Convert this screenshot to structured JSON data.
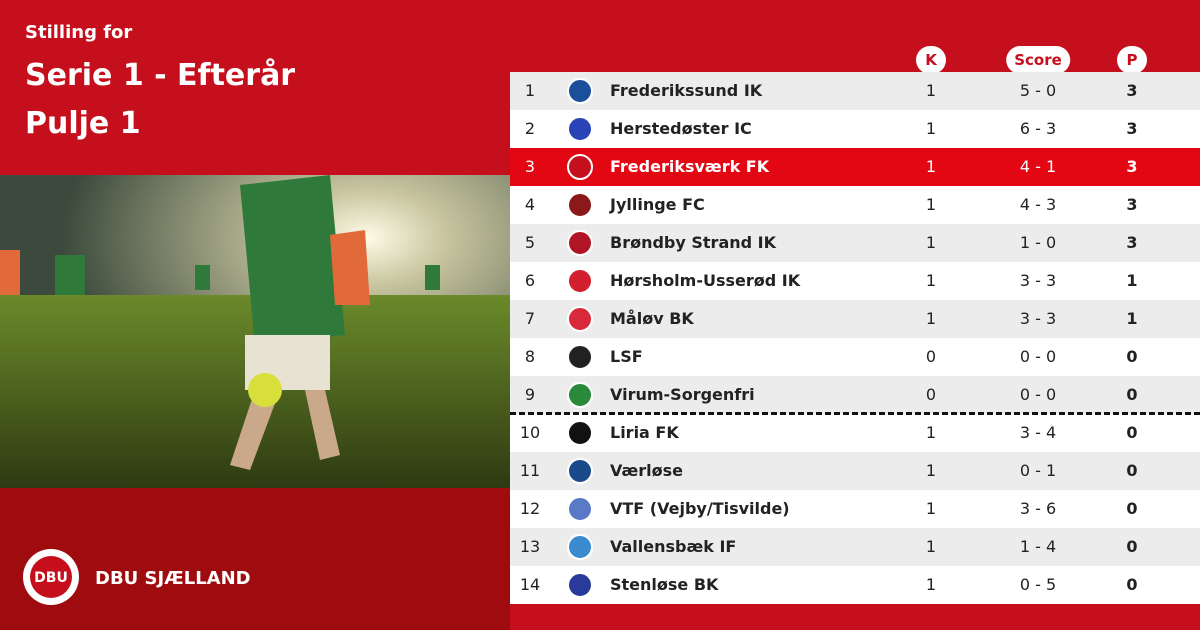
{
  "header": {
    "kicker": "Stilling for",
    "title": "Serie 1 - Efterår",
    "subtitle": "Pulje 1"
  },
  "brand": {
    "logo_text": "DBU",
    "name": "DBU SJÆLLAND"
  },
  "table": {
    "columns": [
      "K",
      "Score",
      "P"
    ],
    "cut_line_after_rank": 9,
    "rows": [
      {
        "rank": 1,
        "team": "Frederikssund IK",
        "k": 1,
        "score": "5 - 0",
        "p": 3
      },
      {
        "rank": 2,
        "team": "Herstedøster IC",
        "k": 1,
        "score": "6 - 3",
        "p": 3
      },
      {
        "rank": 3,
        "team": "Frederiksværk FK",
        "k": 1,
        "score": "4 - 1",
        "p": 3,
        "highlight": true
      },
      {
        "rank": 4,
        "team": "Jyllinge FC",
        "k": 1,
        "score": "4 - 3",
        "p": 3
      },
      {
        "rank": 5,
        "team": "Brøndby Strand IK",
        "k": 1,
        "score": "1 - 0",
        "p": 3
      },
      {
        "rank": 6,
        "team": "Hørsholm-Usserød IK",
        "k": 1,
        "score": "3 - 3",
        "p": 1
      },
      {
        "rank": 7,
        "team": "Måløv BK",
        "k": 1,
        "score": "3 - 3",
        "p": 1
      },
      {
        "rank": 8,
        "team": "LSF",
        "k": 0,
        "score": "0 - 0",
        "p": 0
      },
      {
        "rank": 9,
        "team": "Virum-Sorgenfri",
        "k": 0,
        "score": "0 - 0",
        "p": 0
      },
      {
        "rank": 10,
        "team": "Liria FK",
        "k": 1,
        "score": "3 - 4",
        "p": 0
      },
      {
        "rank": 11,
        "team": "Værløse",
        "k": 1,
        "score": "0 - 1",
        "p": 0
      },
      {
        "rank": 12,
        "team": "VTF (Vejby/Tisvilde)",
        "k": 1,
        "score": "3 - 6",
        "p": 0
      },
      {
        "rank": 13,
        "team": "Vallensbæk IF",
        "k": 1,
        "score": "1 - 4",
        "p": 0
      },
      {
        "rank": 14,
        "team": "Stenløse BK",
        "k": 1,
        "score": "0 - 5",
        "p": 0
      }
    ]
  }
}
